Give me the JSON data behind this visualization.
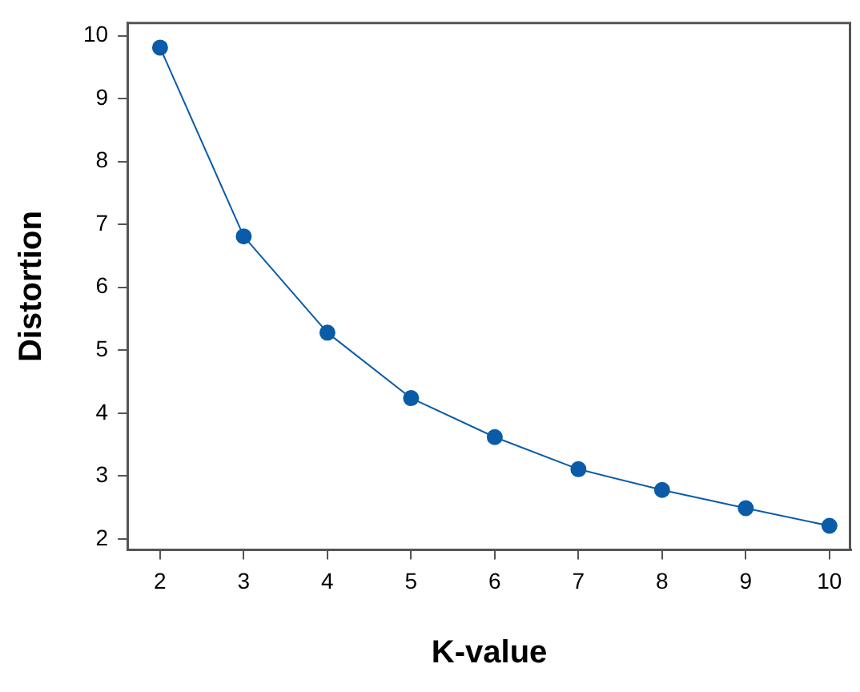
{
  "chart_data": {
    "type": "line",
    "xlabel": "K-value",
    "ylabel": "Distortion",
    "x": [
      2,
      3,
      4,
      5,
      6,
      7,
      8,
      9,
      10
    ],
    "series": [
      {
        "color": "#0a5ca8",
        "values": [
          9.81,
          6.81,
          5.28,
          4.24,
          3.62,
          3.11,
          2.78,
          2.49,
          2.21
        ]
      }
    ],
    "xlim": [
      1.61,
      10.26
    ],
    "ylim": [
      1.83,
      10.2
    ],
    "xticks": [
      2,
      3,
      4,
      5,
      6,
      7,
      8,
      9,
      10
    ],
    "yticks": [
      2,
      3,
      4,
      5,
      6,
      7,
      8,
      9,
      10
    ],
    "grid": false,
    "legend": false,
    "marker": "circle",
    "line_style": "solid"
  }
}
